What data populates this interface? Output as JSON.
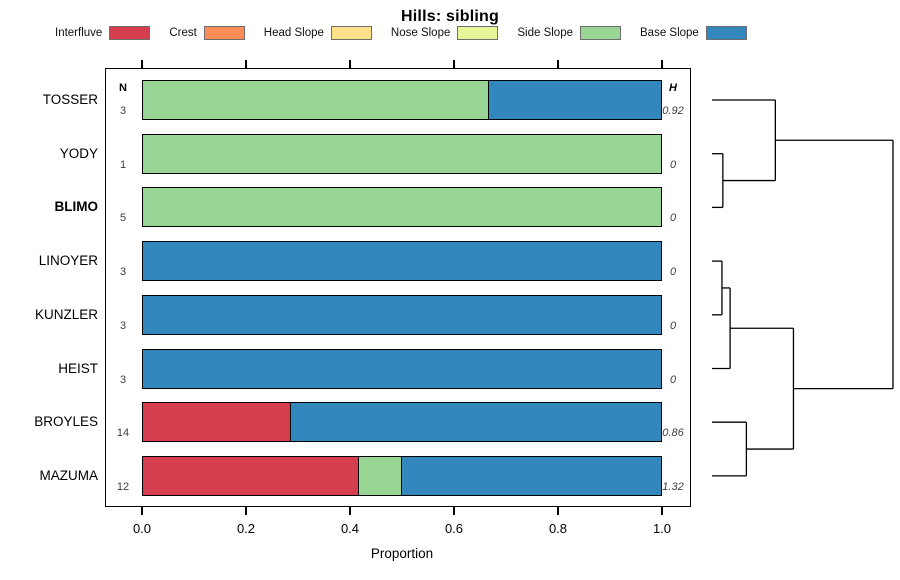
{
  "title": "Hills: sibling",
  "xlabel": "Proportion",
  "columns": {
    "n_header": "N",
    "h_header": "H"
  },
  "x_ticks": [
    "0.0",
    "0.2",
    "0.4",
    "0.6",
    "0.8",
    "1.0"
  ],
  "legend": [
    {
      "label": "Interfluve",
      "color": "#D53E4F"
    },
    {
      "label": "Crest",
      "color": "#FC8D59"
    },
    {
      "label": "Head Slope",
      "color": "#FEE08B"
    },
    {
      "label": "Nose Slope",
      "color": "#E6F598"
    },
    {
      "label": "Side Slope",
      "color": "#99D594"
    },
    {
      "label": "Base Slope",
      "color": "#3288BD"
    }
  ],
  "chart_data": {
    "type": "bar",
    "orientation": "horizontal",
    "stacked": true,
    "title": "Hills: sibling",
    "xlabel": "Proportion",
    "xlim": [
      0,
      1
    ],
    "grid": false,
    "categories": [
      "Interfluve",
      "Crest",
      "Head Slope",
      "Nose Slope",
      "Side Slope",
      "Base Slope"
    ],
    "category_colors": {
      "Interfluve": "#D53E4F",
      "Crest": "#FC8D59",
      "Head Slope": "#FEE08B",
      "Nose Slope": "#E6F598",
      "Side Slope": "#99D594",
      "Base Slope": "#3288BD"
    },
    "rows": [
      {
        "label": "TOSSER",
        "bold": false,
        "n": "3",
        "h": "0.92",
        "segments": [
          {
            "category": "Side Slope",
            "value": 0.667
          },
          {
            "category": "Base Slope",
            "value": 0.333
          }
        ]
      },
      {
        "label": "YODY",
        "bold": false,
        "n": "1",
        "h": "0",
        "segments": [
          {
            "category": "Side Slope",
            "value": 1.0
          }
        ]
      },
      {
        "label": "BLIMO",
        "bold": true,
        "n": "5",
        "h": "0",
        "segments": [
          {
            "category": "Side Slope",
            "value": 1.0
          }
        ]
      },
      {
        "label": "LINOYER",
        "bold": false,
        "n": "3",
        "h": "0",
        "segments": [
          {
            "category": "Base Slope",
            "value": 1.0
          }
        ]
      },
      {
        "label": "KUNZLER",
        "bold": false,
        "n": "3",
        "h": "0",
        "segments": [
          {
            "category": "Base Slope",
            "value": 1.0
          }
        ]
      },
      {
        "label": "HEIST",
        "bold": false,
        "n": "3",
        "h": "0",
        "segments": [
          {
            "category": "Base Slope",
            "value": 1.0
          }
        ]
      },
      {
        "label": "BROYLES",
        "bold": false,
        "n": "14",
        "h": "0.86",
        "segments": [
          {
            "category": "Interfluve",
            "value": 0.286
          },
          {
            "category": "Base Slope",
            "value": 0.714
          }
        ]
      },
      {
        "label": "MAZUMA",
        "bold": false,
        "n": "12",
        "h": "1.32",
        "segments": [
          {
            "category": "Interfluve",
            "value": 0.4167
          },
          {
            "category": "Side Slope",
            "value": 0.0833
          },
          {
            "category": "Base Slope",
            "value": 0.5
          }
        ]
      }
    ],
    "dendrogram": {
      "leaf_order": [
        "TOSSER",
        "YODY",
        "BLIMO",
        "LINOYER",
        "KUNZLER",
        "HEIST",
        "BROYLES",
        "MAZUMA"
      ],
      "merges": [
        {
          "id": "m1",
          "children": [
            "YODY",
            "BLIMO"
          ],
          "height": 0.06
        },
        {
          "id": "m2",
          "children": [
            "TOSSER",
            "m1"
          ],
          "height": 0.35
        },
        {
          "id": "m3",
          "children": [
            "LINOYER",
            "KUNZLER"
          ],
          "height": 0.055
        },
        {
          "id": "m4",
          "children": [
            "m3",
            "HEIST"
          ],
          "height": 0.1
        },
        {
          "id": "m5",
          "children": [
            "BROYLES",
            "MAZUMA"
          ],
          "height": 0.19
        },
        {
          "id": "m6",
          "children": [
            "m4",
            "m5"
          ],
          "height": 0.45
        },
        {
          "id": "m7",
          "children": [
            "m2",
            "m6"
          ],
          "height": 1.0
        }
      ]
    }
  }
}
